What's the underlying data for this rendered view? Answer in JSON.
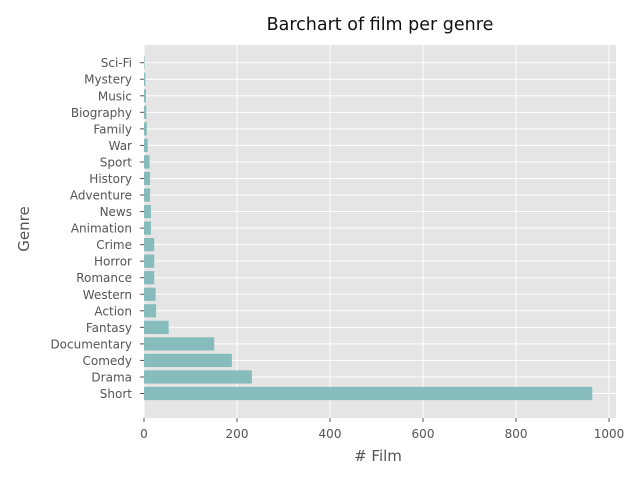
{
  "chart_data": {
    "type": "bar",
    "orientation": "horizontal",
    "title": "Barchart of film per genre",
    "xlabel": "# Film",
    "ylabel": "Genre",
    "xlim": [
      0,
      1015
    ],
    "xticks": [
      0,
      200,
      400,
      600,
      800,
      1000
    ],
    "grid": true,
    "categories": [
      "Short",
      "Drama",
      "Comedy",
      "Documentary",
      "Fantasy",
      "Action",
      "Western",
      "Romance",
      "Horror",
      "Crime",
      "Animation",
      "News",
      "Adventure",
      "History",
      "Sport",
      "War",
      "Family",
      "Biography",
      "Music",
      "Mystery",
      "Sci-Fi"
    ],
    "values": [
      964,
      232,
      189,
      151,
      53,
      26,
      25,
      22,
      22,
      22,
      15,
      15,
      13,
      13,
      12,
      8,
      6,
      5,
      4,
      3,
      1
    ],
    "bar_color": "#86bcbc",
    "background_color": "#e5e5e5",
    "grid_color": "#ffffff"
  }
}
